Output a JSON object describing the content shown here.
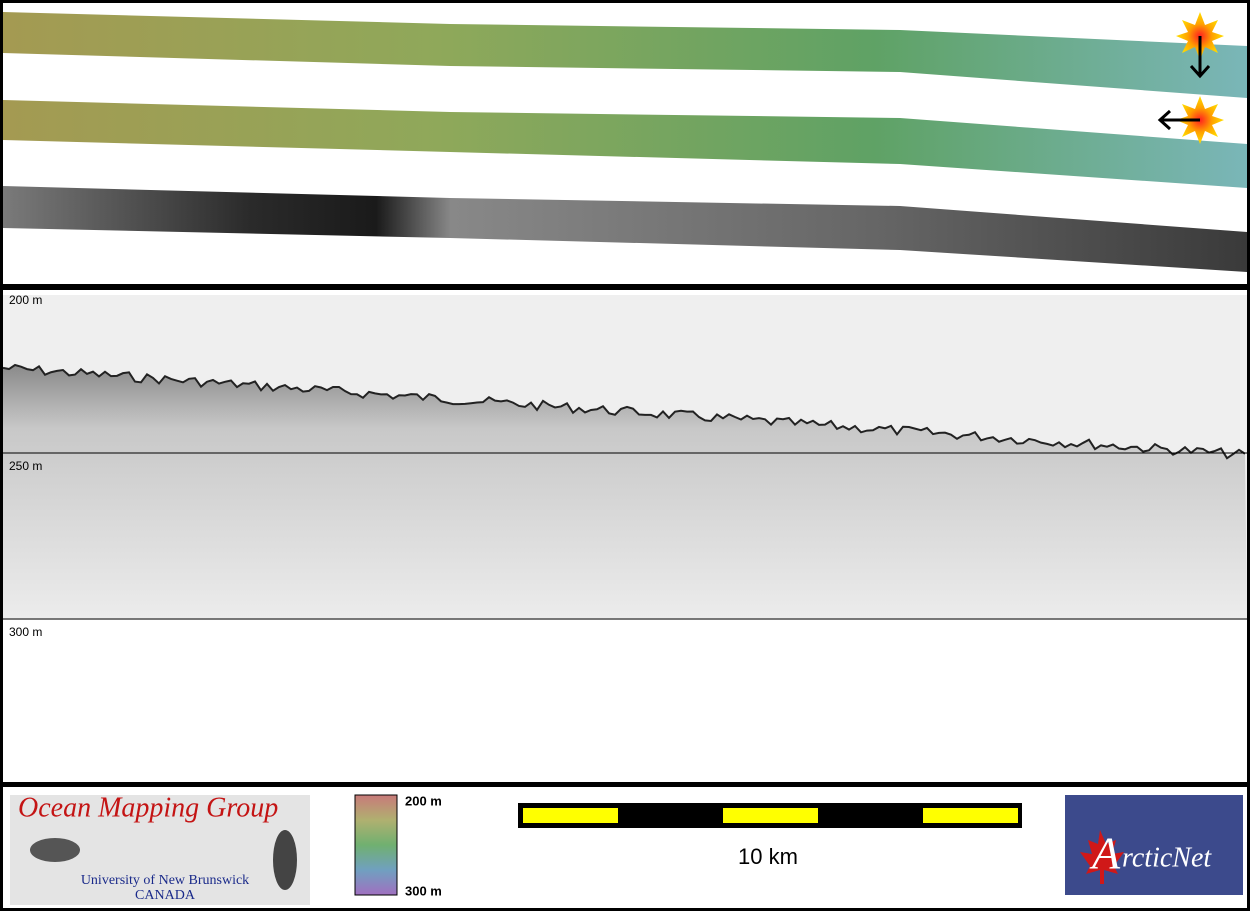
{
  "profile": {
    "depth_labels": [
      "200 m",
      "250 m",
      "300 m"
    ]
  },
  "footer": {
    "logo": {
      "title": "Ocean Mapping Group",
      "line1": "University of New Brunswick",
      "line2": "CANADA"
    },
    "colorbar": {
      "top": "200 m",
      "bottom": "300 m"
    },
    "scale": "10 km",
    "partner": {
      "initial": "A",
      "rest": "rcticNet"
    }
  }
}
